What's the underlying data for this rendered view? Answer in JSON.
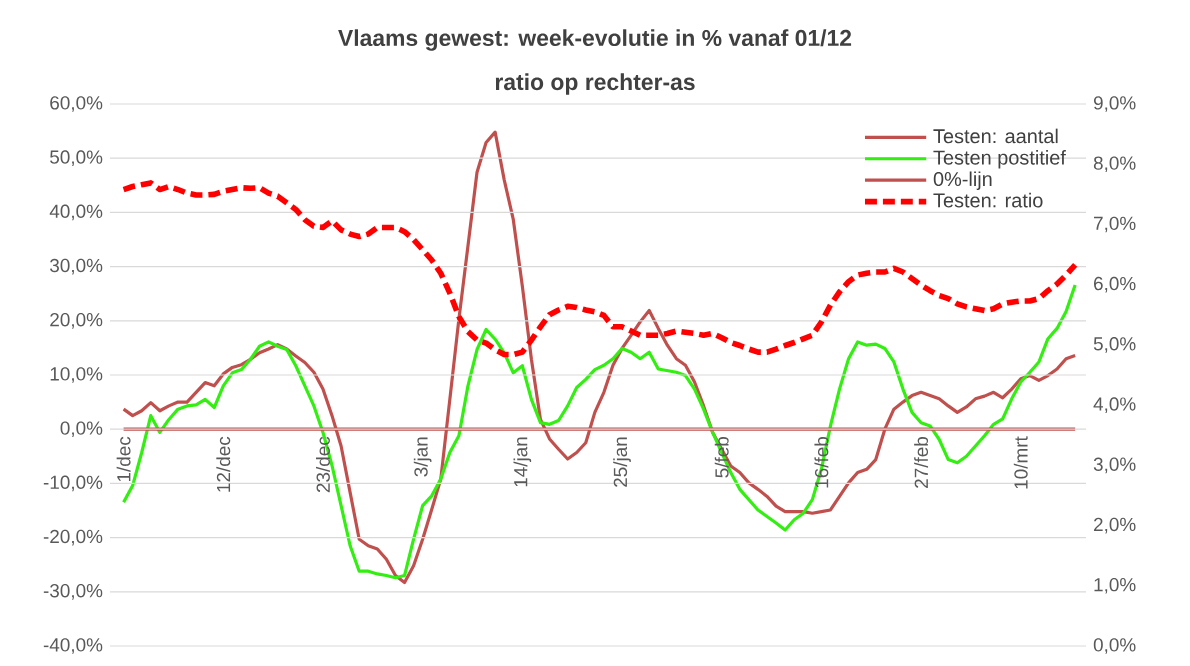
{
  "chart_data": {
    "type": "line",
    "title": "Vlaams gewest:  week-evolutie in %  vanaf 01/12",
    "subtitle": "ratio op rechter-as",
    "categories": [
      "1/dec",
      null,
      null,
      null,
      null,
      null,
      null,
      null,
      null,
      null,
      null,
      "12/dec",
      null,
      null,
      null,
      null,
      null,
      null,
      null,
      null,
      null,
      null,
      "23/dec",
      null,
      null,
      null,
      null,
      null,
      null,
      null,
      null,
      null,
      null,
      "3/jan",
      null,
      null,
      null,
      null,
      null,
      null,
      null,
      null,
      null,
      null,
      "14/jan",
      null,
      null,
      null,
      null,
      null,
      null,
      null,
      null,
      null,
      null,
      "25/jan",
      null,
      null,
      null,
      null,
      null,
      null,
      null,
      null,
      null,
      null,
      "5/feb",
      null,
      null,
      null,
      null,
      null,
      null,
      null,
      null,
      null,
      null,
      "16/feb",
      null,
      null,
      null,
      null,
      null,
      null,
      null,
      null,
      null,
      null,
      "27/feb",
      null,
      null,
      null,
      null,
      null,
      null,
      null,
      null,
      null,
      null,
      "10/mrt",
      null,
      null,
      null,
      null,
      null,
      null
    ],
    "series": [
      {
        "name": "Testen: aantal",
        "color": "#c0504d",
        "line_style": "solid",
        "values": [
          3.7,
          2.5,
          3.4,
          4.9,
          3.4,
          4.3,
          5,
          5,
          6.8,
          8.6,
          8,
          10.2,
          11.4,
          11.9,
          12.9,
          14.1,
          14.8,
          15.6,
          14.8,
          13.5,
          12.3,
          10.5,
          7.4,
          2.5,
          -3.1,
          -11.7,
          -20.3,
          -21.5,
          -22.1,
          -24,
          -27,
          -28.3,
          -25.2,
          -20.3,
          -14.8,
          -9.2,
          5.5,
          20.3,
          33.8,
          47.4,
          52.9,
          54.8,
          46,
          38.7,
          26.4,
          12.9,
          1.8,
          -1.8,
          -3.7,
          -5.5,
          -4.3,
          -2.5,
          3.1,
          6.8,
          11.8,
          14.9,
          17.3,
          19.8,
          21.9,
          18.6,
          15.5,
          13,
          11.8,
          8.7,
          4.3,
          -0.6,
          -3.7,
          -6.8,
          -8,
          -9.9,
          -11.1,
          -12.4,
          -14.2,
          -15.2,
          -15.2,
          -15.2,
          -15.5,
          -15.2,
          -14.9,
          -12.4,
          -9.9,
          -8,
          -7.4,
          -5.6,
          0,
          3.7,
          5,
          6.2,
          6.8,
          6.2,
          5.6,
          4.3,
          3.1,
          4.1,
          5.6,
          6.1,
          6.8,
          5.8,
          7.4,
          9.3,
          9.9,
          9,
          9.9,
          11.1,
          13,
          13.6
        ]
      },
      {
        "name": "Testen postitief",
        "color": "#33ee11",
        "line_style": "solid",
        "values": [
          -13.5,
          -10.4,
          -4.3,
          2.5,
          -0.6,
          1.8,
          3.7,
          4.3,
          4.5,
          5.5,
          4,
          8,
          10.4,
          11,
          12.9,
          15.3,
          16.1,
          15.3,
          14.7,
          11.7,
          8,
          4.3,
          -0.6,
          -6.7,
          -14.1,
          -21.5,
          -26.2,
          -26.2,
          -26.7,
          -27,
          -27.4,
          -27,
          -20.3,
          -14.1,
          -12.3,
          -9.2,
          -4.3,
          -1.2,
          8,
          14.7,
          18.4,
          16.6,
          14.1,
          10.4,
          11.7,
          5.5,
          1.2,
          0.9,
          1.6,
          4.3,
          7.7,
          9.2,
          11,
          11.8,
          13,
          14.9,
          14.2,
          13,
          14.2,
          11.1,
          10.8,
          10.5,
          9.9,
          7.4,
          3.7,
          -0.6,
          -4.3,
          -8,
          -11.1,
          -13,
          -14.9,
          -16.1,
          -17.3,
          -18.6,
          -16.7,
          -15.5,
          -13,
          -7.4,
          0.6,
          7.4,
          13,
          16.1,
          15.5,
          15.7,
          14.9,
          12.4,
          7.4,
          3.1,
          1.2,
          0.6,
          -1.9,
          -5.6,
          -6.2,
          -5,
          -3.1,
          -1.2,
          0.9,
          1.9,
          5.6,
          8.7,
          10.5,
          12.4,
          16.7,
          18.6,
          21.7,
          26.6
        ]
      },
      {
        "name": "0%-lijn",
        "color": "#c0504d",
        "line_style": "solid",
        "values": [
          0,
          0,
          0,
          0,
          0,
          0,
          0,
          0,
          0,
          0,
          0,
          0,
          0,
          0,
          0,
          0,
          0,
          0,
          0,
          0,
          0,
          0,
          0,
          0,
          0,
          0,
          0,
          0,
          0,
          0,
          0,
          0,
          0,
          0,
          0,
          0,
          0,
          0,
          0,
          0,
          0,
          0,
          0,
          0,
          0,
          0,
          0,
          0,
          0,
          0,
          0,
          0,
          0,
          0,
          0,
          0,
          0,
          0,
          0,
          0,
          0,
          0,
          0,
          0,
          0,
          0,
          0,
          0,
          0,
          0,
          0,
          0,
          0,
          0,
          0,
          0,
          0,
          0,
          0,
          0,
          0,
          0,
          0,
          0,
          0,
          0,
          0,
          0,
          0,
          0,
          0,
          0,
          0,
          0,
          0,
          0,
          0,
          0,
          0,
          0,
          0,
          0,
          0,
          0,
          0,
          0
        ]
      },
      {
        "name": "Testen: ratio",
        "color": "#ff0000",
        "line_style": "dashed",
        "axis": "y2",
        "values": [
          7.58,
          7.63,
          7.66,
          7.69,
          7.58,
          7.63,
          7.58,
          7.52,
          7.49,
          7.49,
          7.5,
          7.55,
          7.58,
          7.61,
          7.6,
          7.61,
          7.52,
          7.47,
          7.36,
          7.25,
          7.08,
          6.97,
          6.95,
          7.06,
          6.91,
          6.84,
          6.8,
          6.84,
          6.95,
          6.95,
          6.95,
          6.88,
          6.75,
          6.58,
          6.41,
          6.19,
          5.86,
          5.47,
          5.22,
          5.08,
          5.03,
          4.92,
          4.84,
          4.84,
          4.88,
          5.08,
          5.3,
          5.5,
          5.58,
          5.64,
          5.62,
          5.58,
          5.55,
          5.49,
          5.3,
          5.3,
          5.23,
          5.16,
          5.16,
          5.16,
          5.19,
          5.23,
          5.21,
          5.19,
          5.16,
          5.19,
          5.12,
          5.04,
          4.99,
          4.93,
          4.88,
          4.88,
          4.93,
          4.99,
          5.04,
          5.1,
          5.16,
          5.38,
          5.66,
          5.88,
          6.05,
          6.16,
          6.19,
          6.21,
          6.21,
          6.27,
          6.21,
          6.1,
          5.99,
          5.9,
          5.82,
          5.77,
          5.68,
          5.63,
          5.6,
          5.57,
          5.6,
          5.68,
          5.71,
          5.73,
          5.73,
          5.77,
          5.9,
          6.01,
          6.16,
          6.33
        ]
      }
    ],
    "ylim": [
      -40,
      60
    ],
    "yticks": [
      {
        "value": -40,
        "label": "-40,0%"
      },
      {
        "value": -30,
        "label": "-30,0%"
      },
      {
        "value": -20,
        "label": "-20,0%"
      },
      {
        "value": -10,
        "label": "-10,0%"
      },
      {
        "value": 0,
        "label": "0,0%"
      },
      {
        "value": 10,
        "label": "10,0%"
      },
      {
        "value": 20,
        "label": "20,0%"
      },
      {
        "value": 30,
        "label": "30,0%"
      },
      {
        "value": 40,
        "label": "40,0%"
      },
      {
        "value": 50,
        "label": "50,0%"
      },
      {
        "value": 60,
        "label": "60,0%"
      }
    ],
    "y2lim": [
      0,
      9
    ],
    "y2ticks": [
      {
        "value": 0,
        "label": "0,0%"
      },
      {
        "value": 1,
        "label": "1,0%"
      },
      {
        "value": 2,
        "label": "2,0%"
      },
      {
        "value": 3,
        "label": "3,0%"
      },
      {
        "value": 4,
        "label": "4,0%"
      },
      {
        "value": 5,
        "label": "5,0%"
      },
      {
        "value": 6,
        "label": "6,0%"
      },
      {
        "value": 7,
        "label": "7,0%"
      },
      {
        "value": 8,
        "label": "8,0%"
      },
      {
        "value": 9,
        "label": "9,0%"
      }
    ],
    "grid": "y",
    "legend": "top right"
  }
}
